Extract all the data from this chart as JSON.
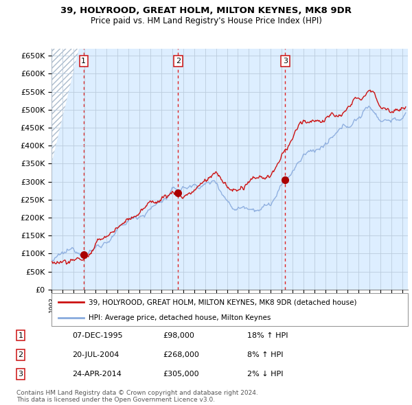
{
  "title_line1": "39, HOLYROOD, GREAT HOLM, MILTON KEYNES, MK8 9DR",
  "title_line2": "Price paid vs. HM Land Registry's House Price Index (HPI)",
  "ylabel_ticks": [
    "£0",
    "£50K",
    "£100K",
    "£150K",
    "£200K",
    "£250K",
    "£300K",
    "£350K",
    "£400K",
    "£450K",
    "£500K",
    "£550K",
    "£600K",
    "£650K"
  ],
  "ytick_vals": [
    0,
    50000,
    100000,
    150000,
    200000,
    250000,
    300000,
    350000,
    400000,
    450000,
    500000,
    550000,
    600000,
    650000
  ],
  "xlim_start": 1993.0,
  "xlim_end": 2025.5,
  "ylim_min": 0,
  "ylim_max": 670000,
  "sale_dates": [
    1995.93,
    2004.55,
    2014.32
  ],
  "sale_prices": [
    98000,
    268000,
    305000
  ],
  "sale_labels": [
    "1",
    "2",
    "3"
  ],
  "vline_color": "#dd2222",
  "dot_color": "#aa0000",
  "dot_size": 7,
  "hpi_color": "#88aadd",
  "price_color": "#cc1111",
  "grid_color": "#bbccdd",
  "plot_bg_color": "#ddeeff",
  "legend_line1": "39, HOLYROOD, GREAT HOLM, MILTON KEYNES, MK8 9DR (detached house)",
  "legend_line2": "HPI: Average price, detached house, Milton Keynes",
  "table_rows": [
    [
      "1",
      "07-DEC-1995",
      "£98,000",
      "18% ↑ HPI"
    ],
    [
      "2",
      "20-JUL-2004",
      "£268,000",
      "8% ↑ HPI"
    ],
    [
      "3",
      "24-APR-2014",
      "£305,000",
      "2% ↓ HPI"
    ]
  ],
  "footnote_line1": "Contains HM Land Registry data © Crown copyright and database right 2024.",
  "footnote_line2": "This data is licensed under the Open Government Licence v3.0.",
  "background_color": "#ffffff"
}
